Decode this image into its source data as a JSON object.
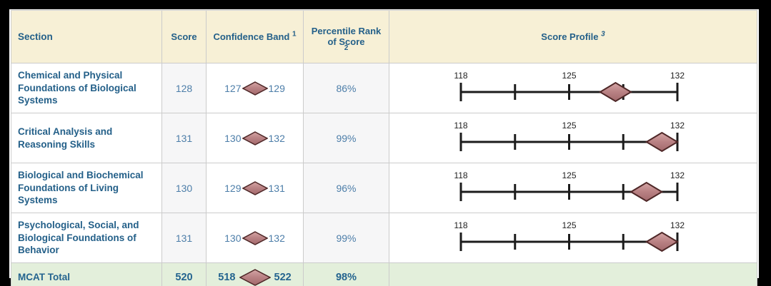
{
  "report": {
    "columns": [
      {
        "label": "Section",
        "superscript": ""
      },
      {
        "label": "Score",
        "superscript": ""
      },
      {
        "label": "Confidence Band",
        "superscript": "1"
      },
      {
        "label": "Percentile Rank of Score",
        "superscript": "2"
      },
      {
        "label": "Score Profile",
        "superscript": "3"
      }
    ],
    "rows": [
      {
        "section": "Chemical and Physical Foundations of Biological Systems",
        "score": "128",
        "band_low": "127",
        "band_high": "129",
        "percentile": "86%",
        "profile_score": 128,
        "profile_band_low": 127,
        "profile_band_high": 129
      },
      {
        "section": "Critical Analysis and Reasoning Skills",
        "score": "131",
        "band_low": "130",
        "band_high": "132",
        "percentile": "99%",
        "profile_score": 131,
        "profile_band_low": 130,
        "profile_band_high": 132
      },
      {
        "section": "Biological and Biochemical Foundations of Living Systems",
        "score": "130",
        "band_low": "129",
        "band_high": "131",
        "percentile": "96%",
        "profile_score": 130,
        "profile_band_low": 129,
        "profile_band_high": 131
      },
      {
        "section": "Psychological, Social, and Biological Foundations of Behavior",
        "score": "131",
        "band_low": "130",
        "band_high": "132",
        "percentile": "99%",
        "profile_score": 131,
        "profile_band_low": 130,
        "profile_band_high": 132
      }
    ],
    "total": {
      "section": "MCAT Total",
      "score": "520",
      "band_low": "518",
      "band_high": "522",
      "percentile": "98%"
    },
    "profile_axis": {
      "min": 118,
      "max": 132,
      "ticks": [
        118,
        121.5,
        125,
        128.5,
        132
      ],
      "labeled_ticks": [
        118,
        125,
        132
      ]
    }
  },
  "colors": {
    "frame": "#000000",
    "page_bg": "#ffffff",
    "header_bg": "#f7f0d6",
    "header_text": "#246089",
    "section_text": "#246089",
    "value_text": "#4d7ea9",
    "total_row_bg": "#e3efdb",
    "border": "#cbcbcb",
    "tint_cell_bg": "#f6f6f7",
    "axis_stroke": "#1c1c1c",
    "tick_label": "#222222",
    "diamond_fill": "#bb8486",
    "diamond_fill_light": "#d5a6a6",
    "diamond_fill_dark": "#a2686b",
    "diamond_stroke": "#4e2727"
  },
  "chart_data": {
    "type": "table",
    "columns": [
      "Section",
      "Score",
      "Confidence Band 1",
      "Percentile Rank of Score 2",
      "Score Profile 3"
    ],
    "rows": [
      [
        "Chemical and Physical Foundations of Biological Systems",
        128,
        "127-129",
        "86%",
        "diamond centered at 128 spanning 127-129"
      ],
      [
        "Critical Analysis and Reasoning Skills",
        131,
        "130-132",
        "99%",
        "diamond centered at 131 spanning 130-132"
      ],
      [
        "Biological and Biochemical Foundations of Living Systems",
        130,
        "129-131",
        "96%",
        "diamond centered at 130 spanning 129-131"
      ],
      [
        "Psychological, Social, and Biological Foundations of Behavior",
        131,
        "130-132",
        "99%",
        "diamond centered at 131 spanning 130-132"
      ],
      [
        "MCAT Total",
        520,
        "518-522",
        "98%",
        ""
      ]
    ],
    "score_profile_axis": {
      "xlim": [
        118,
        132
      ],
      "ticks": [
        118,
        121.5,
        125,
        128.5,
        132
      ],
      "tick_labels": [
        "118",
        "125",
        "132"
      ],
      "grid": false
    }
  }
}
